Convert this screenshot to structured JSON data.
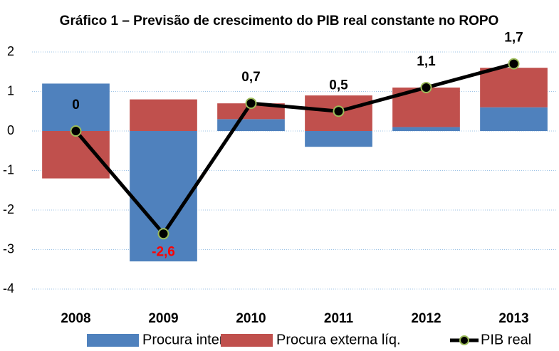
{
  "chart_data": {
    "type": "bar",
    "title": "Gráfico 1 – Previsão de crescimento do PIB real constante no ROPO",
    "categories": [
      "2008",
      "2009",
      "2010",
      "2011",
      "2012",
      "2013"
    ],
    "series": [
      {
        "name": "Procura interna",
        "type": "bar",
        "color": "#4f81bd",
        "values": [
          1.2,
          -3.3,
          0.3,
          -0.4,
          0.1,
          0.6
        ]
      },
      {
        "name": "Procura externa líq.",
        "type": "bar",
        "color": "#c0504d",
        "values": [
          -1.2,
          0.8,
          0.4,
          0.9,
          1.0,
          1.0
        ]
      },
      {
        "name": "PIB real",
        "type": "line",
        "color": "#000000",
        "marker_color": "#9bbb59",
        "values": [
          0,
          -2.6,
          0.7,
          0.5,
          1.1,
          1.7
        ],
        "value_labels": [
          "0",
          "-2,6",
          "0,7",
          "0,5",
          "1,1",
          "1,7"
        ],
        "negative_label_color": "#ff0000"
      }
    ],
    "ylim": [
      -4,
      2
    ],
    "yticks": [
      -4,
      -3,
      -2,
      -1,
      0,
      1,
      2
    ],
    "grid": true,
    "legend": "bottom"
  }
}
